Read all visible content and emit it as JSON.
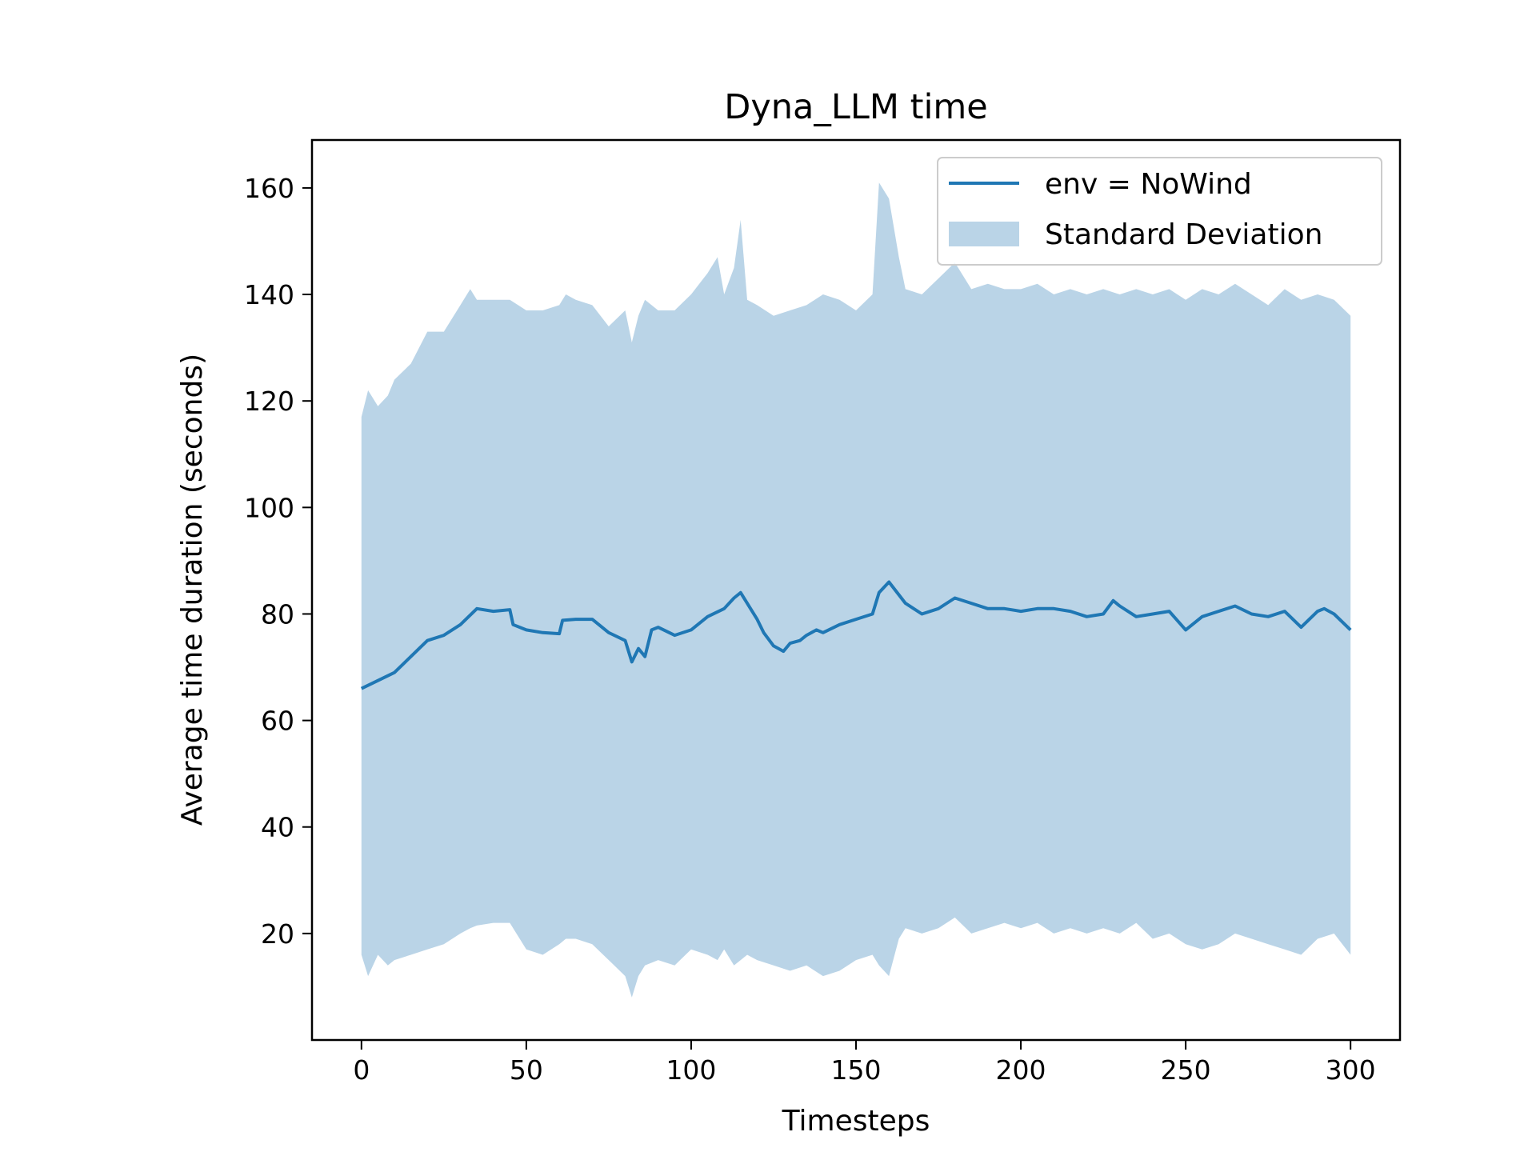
{
  "chart_data": {
    "type": "line",
    "title": "Dyna_LLM time",
    "xlabel": "Timesteps",
    "ylabel": "Average time duration (seconds)",
    "xlim": [
      -15,
      315
    ],
    "ylim": [
      0,
      169
    ],
    "xticks": [
      0,
      50,
      100,
      150,
      200,
      250,
      300
    ],
    "yticks": [
      20,
      40,
      60,
      80,
      100,
      120,
      140,
      160
    ],
    "grid": false,
    "legend_position": "top-right",
    "colors": {
      "line": "#1f77b4",
      "band": "#bad4e7"
    },
    "series": [
      {
        "name": "env = NoWind",
        "kind": "line",
        "x": [
          0,
          5,
          10,
          15,
          20,
          25,
          30,
          35,
          40,
          45,
          46,
          50,
          55,
          60,
          61,
          65,
          70,
          75,
          80,
          82,
          84,
          86,
          88,
          90,
          95,
          100,
          105,
          110,
          113,
          115,
          120,
          122,
          125,
          128,
          130,
          133,
          135,
          138,
          140,
          145,
          150,
          155,
          157,
          160,
          165,
          170,
          175,
          180,
          185,
          190,
          195,
          200,
          205,
          210,
          215,
          220,
          225,
          228,
          230,
          235,
          240,
          245,
          250,
          255,
          260,
          265,
          270,
          275,
          280,
          285,
          290,
          292,
          295,
          300
        ],
        "y": [
          66,
          67.5,
          69,
          72,
          75,
          76,
          78,
          81,
          80.5,
          80.8,
          78,
          77,
          76.5,
          76.3,
          78.8,
          79,
          79,
          76.5,
          75,
          71,
          73.5,
          72,
          77,
          77.5,
          76,
          77,
          79.5,
          81,
          83,
          84,
          79,
          76.5,
          74,
          73,
          74.5,
          75,
          76,
          77,
          76.5,
          78,
          79,
          80,
          84,
          86,
          82,
          80,
          81,
          83,
          82,
          81,
          81,
          80.5,
          81,
          81,
          80.5,
          79.5,
          80,
          82.5,
          81.5,
          79.5,
          80,
          80.5,
          77,
          79.5,
          80.5,
          81.5,
          80,
          79.5,
          80.5,
          77.5,
          80.5,
          81,
          80,
          77
        ]
      },
      {
        "name": "Standard Deviation",
        "kind": "band",
        "x": [
          0,
          2,
          5,
          8,
          10,
          15,
          20,
          25,
          30,
          33,
          35,
          40,
          45,
          50,
          55,
          60,
          62,
          65,
          70,
          75,
          80,
          82,
          84,
          86,
          90,
          95,
          100,
          105,
          108,
          110,
          113,
          115,
          117,
          120,
          125,
          130,
          135,
          140,
          145,
          150,
          155,
          157,
          160,
          163,
          165,
          170,
          175,
          180,
          185,
          190,
          195,
          200,
          205,
          210,
          215,
          220,
          225,
          230,
          235,
          240,
          245,
          250,
          255,
          260,
          265,
          270,
          275,
          280,
          285,
          290,
          295,
          300
        ],
        "upper": [
          117,
          122,
          119,
          121,
          124,
          127,
          133,
          133,
          138,
          141,
          139,
          139,
          139,
          137,
          137,
          138,
          140,
          139,
          138,
          134,
          137,
          131,
          136,
          139,
          137,
          137,
          140,
          144,
          147,
          140,
          145,
          154,
          139,
          138,
          136,
          137,
          138,
          140,
          139,
          137,
          140,
          161,
          158,
          147,
          141,
          140,
          143,
          146,
          141,
          142,
          141,
          141,
          142,
          140,
          141,
          140,
          141,
          140,
          141,
          140,
          141,
          139,
          141,
          140,
          142,
          140,
          138,
          141,
          139,
          140,
          139,
          136
        ],
        "lower": [
          16,
          12,
          16,
          14,
          15,
          16,
          17,
          18,
          20,
          21,
          21.5,
          22,
          22,
          17,
          16,
          18,
          19,
          19,
          18,
          15,
          12,
          8,
          12,
          14,
          15,
          14,
          17,
          16,
          15,
          17,
          14,
          15,
          16,
          15,
          14,
          13,
          14,
          12,
          13,
          15,
          16,
          14,
          12,
          19,
          21,
          20,
          21,
          23,
          20,
          21,
          22,
          21,
          22,
          20,
          21,
          20,
          21,
          20,
          22,
          19,
          20,
          18,
          17,
          18,
          20,
          19,
          18,
          17,
          16,
          19,
          20,
          16
        ]
      }
    ]
  }
}
